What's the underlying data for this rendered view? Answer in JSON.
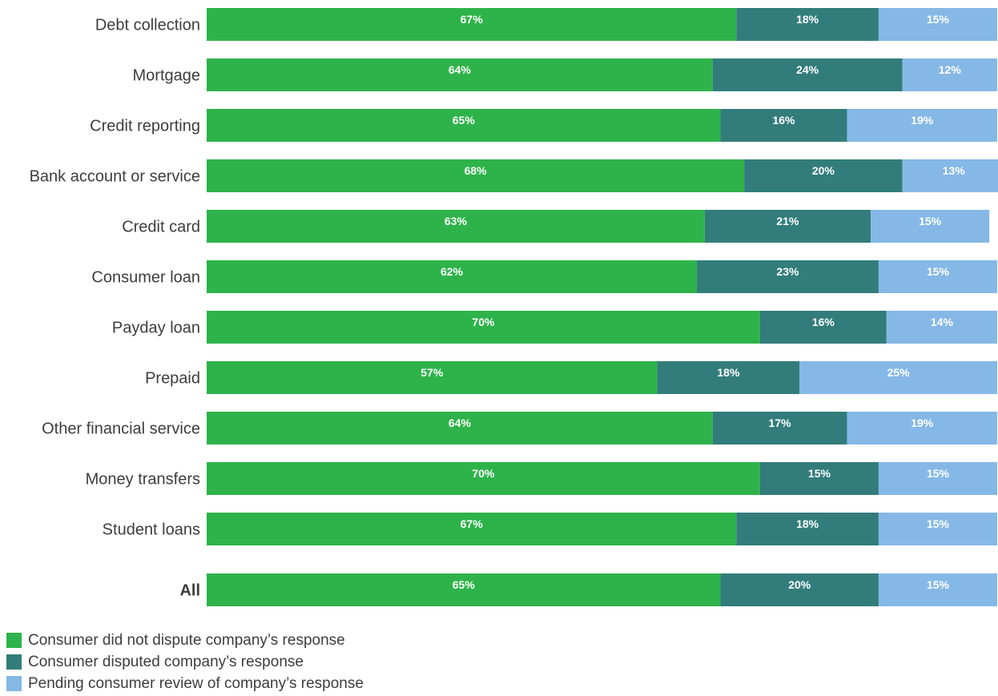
{
  "chart_data": {
    "type": "bar",
    "orientation": "horizontal",
    "stacked": true,
    "categories": [
      "Debt collection",
      "Mortgage",
      "Credit reporting",
      "Bank account or service",
      "Credit card",
      "Consumer loan",
      "Payday loan",
      "Prepaid",
      "Other financial service",
      "Money transfers",
      "Student loans",
      "All"
    ],
    "series": [
      {
        "name": "Consumer did not dispute company’s response",
        "color": "#2eb34a",
        "values": [
          67,
          64,
          65,
          68,
          63,
          62,
          70,
          57,
          64,
          70,
          67,
          65
        ],
        "labels": [
          "67%",
          "64%",
          "65%",
          "68%",
          "63%",
          "62%",
          "70%",
          "57%",
          "64%",
          "70%",
          "67%",
          "65%"
        ]
      },
      {
        "name": "Consumer disputed company’s response",
        "color": "#327d7b",
        "values": [
          18,
          24,
          16,
          20,
          21,
          23,
          16,
          18,
          17,
          15,
          18,
          20
        ],
        "labels": [
          "18%",
          "24%",
          "16%",
          "20%",
          "21%",
          "23%",
          "16%",
          "18%",
          "17%",
          "15%",
          "18%",
          "20%"
        ]
      },
      {
        "name": "Pending consumer review of company’s response",
        "color": "#85b8e6",
        "values": [
          15,
          12,
          19,
          13,
          15,
          15,
          14,
          25,
          19,
          15,
          15,
          15
        ],
        "labels": [
          "15%",
          "12%",
          "19%",
          "13%",
          "15%",
          "15%",
          "14%",
          "25%",
          "19%",
          "15%",
          "15%",
          "15%"
        ]
      }
    ],
    "xlim": [
      0,
      100
    ],
    "grid": false,
    "legend_position": "bottom-left"
  }
}
